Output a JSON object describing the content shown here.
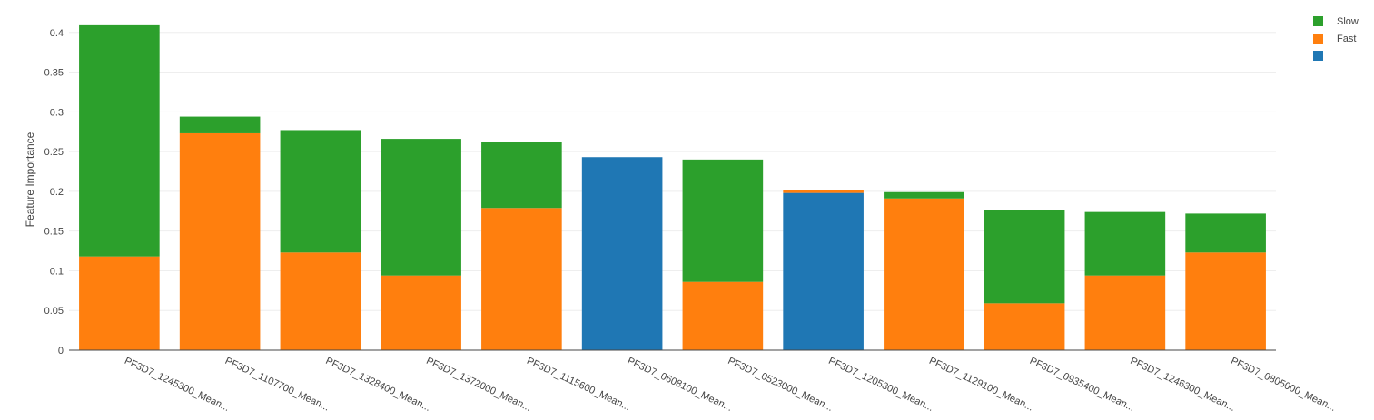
{
  "chart_data": {
    "type": "bar",
    "stacked": true,
    "title": "",
    "xlabel": "",
    "ylabel": "Feature Importance",
    "ylim": [
      0,
      0.42
    ],
    "yticks": [
      0,
      0.05,
      0.1,
      0.15,
      0.2,
      0.25,
      0.3,
      0.35,
      0.4
    ],
    "ytick_labels": [
      "0",
      "0.05",
      "0.1",
      "0.15",
      "0.2",
      "0.25",
      "0.3",
      "0.35",
      "0.4"
    ],
    "grid": true,
    "legend_position": "top-right",
    "categories": [
      "PF3D7_1245300_Mean...",
      "PF3D7_1107700_Mean...",
      "PF3D7_1328400_Mean...",
      "PF3D7_1372000_Mean...",
      "PF3D7_1115600_Mean...",
      "PF3D7_0608100_Mean...",
      "PF3D7_0523000_Mean...",
      "PF3D7_1205300_Mean...",
      "PF3D7_1129100_Mean...",
      "PF3D7_0935400_Mean...",
      "PF3D7_1246300_Mean...",
      "PF3D7_0805000_Mean..."
    ],
    "series": [
      {
        "name": "",
        "color": "#1f77b4",
        "values": [
          0,
          0,
          0,
          0,
          0,
          0.243,
          0,
          0.198,
          0,
          0,
          0,
          0
        ]
      },
      {
        "name": "Fast",
        "color": "#ff7f0e",
        "values": [
          0.118,
          0.273,
          0.123,
          0.094,
          0.179,
          0,
          0.086,
          0.003,
          0.191,
          0.059,
          0.094,
          0.123
        ]
      },
      {
        "name": "Slow",
        "color": "#2ca02c",
        "values": [
          0.291,
          0.021,
          0.154,
          0.172,
          0.083,
          0,
          0.154,
          0,
          0.008,
          0.117,
          0.08,
          0.049
        ]
      }
    ],
    "legend": [
      {
        "name": "Slow",
        "color": "#2ca02c"
      },
      {
        "name": "Fast",
        "color": "#ff7f0e"
      },
      {
        "name": "",
        "color": "#1f77b4"
      }
    ]
  }
}
